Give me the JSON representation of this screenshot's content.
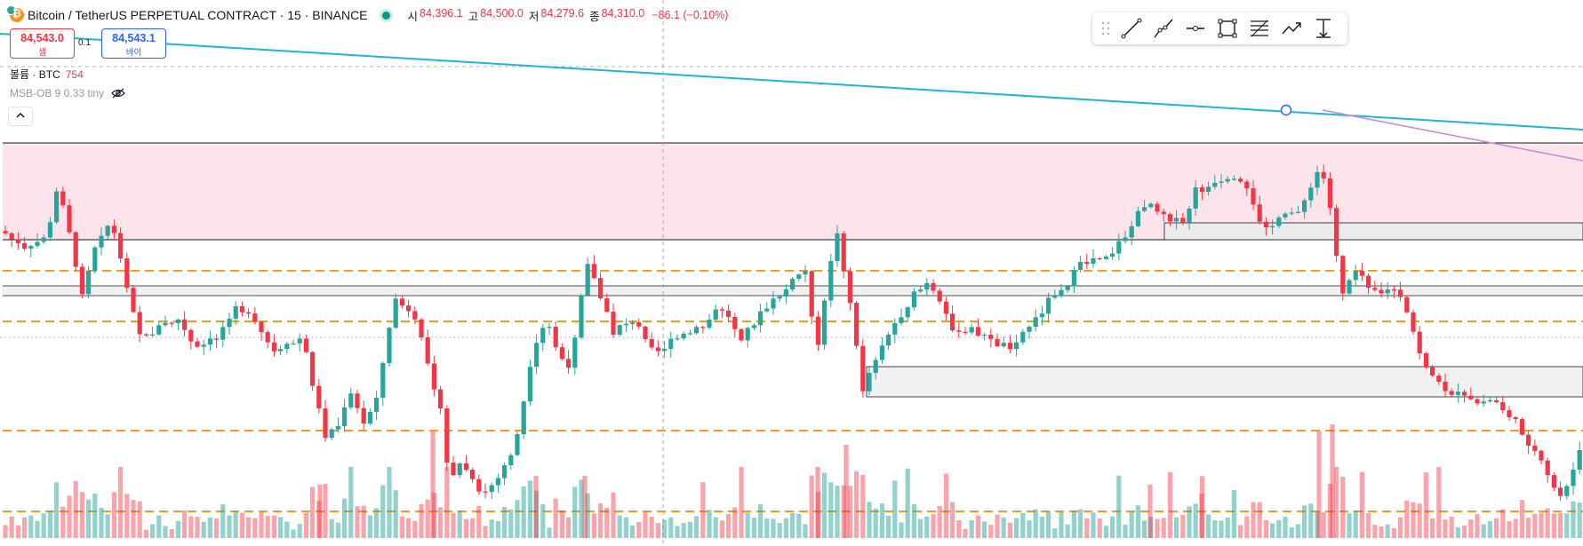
{
  "header": {
    "symbol_title": "Bitcoin / TetherUS PERPETUAL CONTRACT · 15 · BINANCE",
    "ohlc": [
      {
        "label": "시",
        "value": "84,396.1"
      },
      {
        "label": "고",
        "value": "84,500.0"
      },
      {
        "label": "저",
        "value": "84,279.6"
      },
      {
        "label": "종",
        "value": "84,310.0"
      }
    ],
    "change": "−86.1 (−0.10%)"
  },
  "trade": {
    "sell_price": "84,543.0",
    "sell_label": "셀",
    "spread": "0.1",
    "buy_price": "84,543.1",
    "buy_label": "바이"
  },
  "indicators": {
    "volume_name": "볼륨 · BTC",
    "volume_value": "754",
    "msb_label": "MSB-OB 9 0.33 tiny"
  },
  "toolbar": {
    "icons": [
      "trendline-icon",
      "ray-icon",
      "horizontal-ray-icon",
      "rectangle-icon",
      "fib-lines-icon",
      "path-icon",
      "date-range-icon"
    ]
  },
  "colors": {
    "up": "#26a69a",
    "down": "#f23645",
    "trendline": "#22b4d6",
    "pink_zone": "#fde4ea",
    "orange_level": "#f59c1a",
    "purple_line": "#c48fd6"
  }
}
